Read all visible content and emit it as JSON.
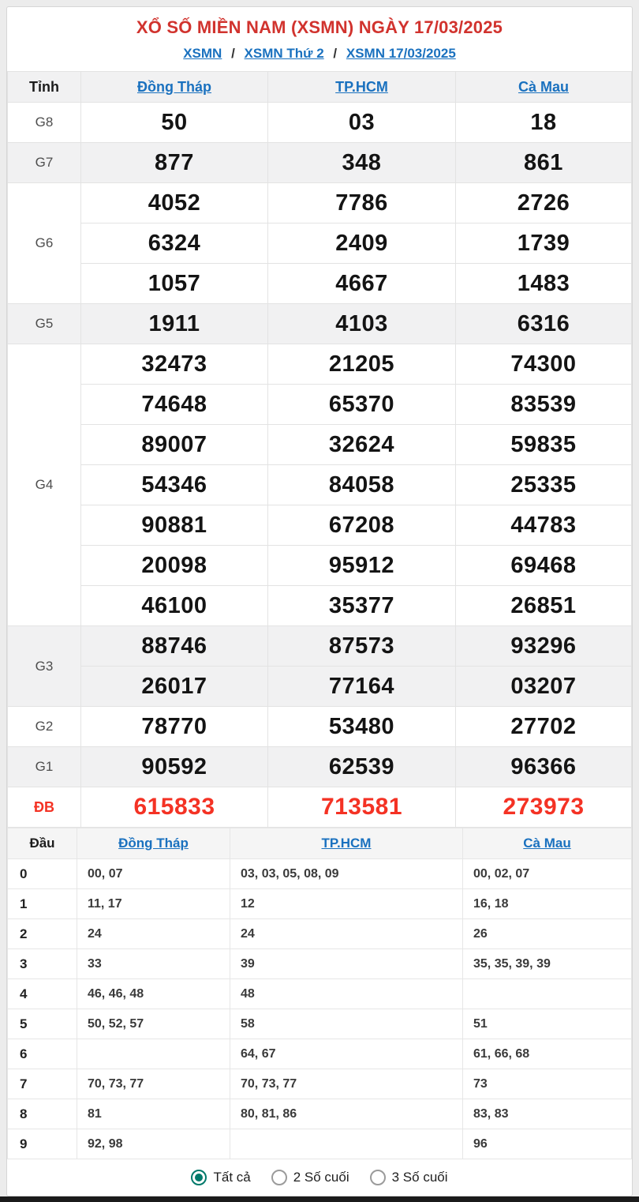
{
  "page": {
    "title": "XỔ SỐ MIỀN NAM (XSMN) NGÀY 17/03/2025",
    "breadcrumb": {
      "items": [
        "XSMN",
        "XSMN Thứ 2",
        "XSMN 17/03/2025"
      ],
      "separator": "/"
    }
  },
  "results_table": {
    "corner_label": "Tỉnh",
    "provinces": [
      "Đồng Tháp",
      "TP.HCM",
      "Cà Mau"
    ],
    "prize_rows": [
      {
        "label": "G8",
        "shaded": false,
        "special": false,
        "values": [
          [
            "50",
            "03",
            "18"
          ]
        ]
      },
      {
        "label": "G7",
        "shaded": true,
        "special": false,
        "values": [
          [
            "877",
            "348",
            "861"
          ]
        ]
      },
      {
        "label": "G6",
        "shaded": false,
        "special": false,
        "values": [
          [
            "4052",
            "7786",
            "2726"
          ],
          [
            "6324",
            "2409",
            "1739"
          ],
          [
            "1057",
            "4667",
            "1483"
          ]
        ]
      },
      {
        "label": "G5",
        "shaded": true,
        "special": false,
        "values": [
          [
            "1911",
            "4103",
            "6316"
          ]
        ]
      },
      {
        "label": "G4",
        "shaded": false,
        "special": false,
        "values": [
          [
            "32473",
            "21205",
            "74300"
          ],
          [
            "74648",
            "65370",
            "83539"
          ],
          [
            "89007",
            "32624",
            "59835"
          ],
          [
            "54346",
            "84058",
            "25335"
          ],
          [
            "90881",
            "67208",
            "44783"
          ],
          [
            "20098",
            "95912",
            "69468"
          ],
          [
            "46100",
            "35377",
            "26851"
          ]
        ]
      },
      {
        "label": "G3",
        "shaded": true,
        "special": false,
        "values": [
          [
            "88746",
            "87573",
            "93296"
          ],
          [
            "26017",
            "77164",
            "03207"
          ]
        ]
      },
      {
        "label": "G2",
        "shaded": false,
        "special": false,
        "values": [
          [
            "78770",
            "53480",
            "27702"
          ]
        ]
      },
      {
        "label": "G1",
        "shaded": true,
        "special": false,
        "values": [
          [
            "90592",
            "62539",
            "96366"
          ]
        ]
      },
      {
        "label": "ĐB",
        "shaded": false,
        "special": true,
        "values": [
          [
            "615833",
            "713581",
            "273973"
          ]
        ]
      }
    ]
  },
  "head_table": {
    "corner_label": "Đầu",
    "provinces": [
      "Đồng Tháp",
      "TP.HCM",
      "Cà Mau"
    ],
    "rows": [
      {
        "digit": "0",
        "cells": [
          "00, 07",
          "03, 03, 05, 08, 09",
          "00, 02, 07"
        ]
      },
      {
        "digit": "1",
        "cells": [
          "11, 17",
          "12",
          "16, 18"
        ]
      },
      {
        "digit": "2",
        "cells": [
          "24",
          "24",
          "26"
        ]
      },
      {
        "digit": "3",
        "cells": [
          "33",
          "39",
          "35, 35, 39, 39"
        ]
      },
      {
        "digit": "4",
        "cells": [
          "46, 46, 48",
          "48",
          ""
        ]
      },
      {
        "digit": "5",
        "cells": [
          "50, 52, 57",
          "58",
          "51"
        ]
      },
      {
        "digit": "6",
        "cells": [
          "",
          "64, 67",
          "61, 66, 68"
        ]
      },
      {
        "digit": "7",
        "cells": [
          "70, 73, 77",
          "70, 73, 77",
          "73"
        ]
      },
      {
        "digit": "8",
        "cells": [
          "81",
          "80, 81, 86",
          "83, 83"
        ]
      },
      {
        "digit": "9",
        "cells": [
          "92, 98",
          "",
          "96"
        ]
      }
    ]
  },
  "footer": {
    "options": [
      {
        "label": "Tất cả",
        "selected": true
      },
      {
        "label": "2 Số cuối",
        "selected": false
      },
      {
        "label": "3 Số cuối",
        "selected": false
      }
    ]
  },
  "colors": {
    "title_red": "#d1332e",
    "special_red": "#f43224",
    "link_blue": "#1a71bf",
    "radio_teal": "#00796b"
  }
}
